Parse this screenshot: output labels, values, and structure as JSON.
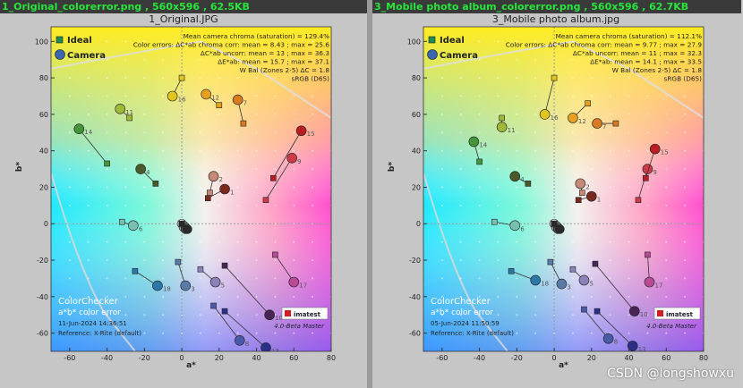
{
  "watermark": "CSDN @longshowxu",
  "windows": [
    {
      "window_title": "1_Original_colorerror.png  ,  560x596  ,  62.5KB",
      "figure_title": "1_Original.JPG",
      "legend": {
        "ideal": "Ideal",
        "camera": "Camera"
      },
      "stats": [
        "Mean camera chroma (saturation) = 129.4%",
        "Color errors: ΔC*ab chroma corr:  mean = 8.43 ;  max = 25.6",
        "ΔC*ab uncorr:  mean = 13 ;  max = 36.3",
        "ΔE*ab:  mean = 15.7 ;  max = 37.1",
        "W Bal (Zones 2-5) ΔC = 1.8",
        "sRGB (D65)"
      ],
      "footer": {
        "title": "ColorChecker",
        "subtitle": "a*b* color error",
        "date": "11-Jun-2024 14:36:51",
        "reference": "Reference: X-Rite (default)",
        "brand": "imatest",
        "version": "4.0-Beta  Master"
      }
    },
    {
      "window_title": "3_Mobile photo album_colorerror.png  ,  560x596  ,  62.7KB",
      "figure_title": "3_Mobile photo album.jpg",
      "legend": {
        "ideal": "Ideal",
        "camera": "Camera"
      },
      "stats": [
        "Mean camera chroma (saturation) = 112.1%",
        "Color errors: ΔC*ab chroma corr:  mean = 9.77 ;  max = 27.9",
        "ΔC*ab uncorr:  mean = 11 ;  max = 32.3",
        "ΔE*ab:  mean = 14.1 ;  max = 33.5",
        "W Bal (Zones 2-5) ΔC = 1.8",
        "sRGB (D65)"
      ],
      "footer": {
        "title": "ColorChecker",
        "subtitle": "a*b* color error",
        "date": "05-Jun-2024 11:50:59",
        "reference": "Reference: X-Rite (default)",
        "brand": "imatest",
        "version": "4.0-Beta  Master"
      }
    }
  ],
  "chart_data": [
    {
      "type": "scatter",
      "title": "1_Original.JPG",
      "xlabel": "a*",
      "ylabel": "b*",
      "xlim": [
        -70,
        80
      ],
      "ylim": [
        -70,
        108
      ],
      "xticks": [
        -60,
        -40,
        -20,
        0,
        20,
        40,
        60,
        80
      ],
      "yticks": [
        -60,
        -40,
        -20,
        0,
        20,
        40,
        60,
        80,
        100
      ],
      "patches": [
        {
          "id": "1",
          "color": "#7a2a1c",
          "ideal": [
            14,
            14
          ],
          "camera": [
            23,
            19
          ]
        },
        {
          "id": "2",
          "color": "#c48a78",
          "ideal": [
            15,
            17
          ],
          "camera": [
            17,
            26
          ]
        },
        {
          "id": "3",
          "color": "#5a7aa8",
          "ideal": [
            -2,
            -21
          ],
          "camera": [
            2,
            -34
          ]
        },
        {
          "id": "4",
          "color": "#4a5a2a",
          "ideal": [
            -14,
            22
          ],
          "camera": [
            -22,
            30
          ]
        },
        {
          "id": "5",
          "color": "#8a82b8",
          "ideal": [
            10,
            -25
          ],
          "camera": [
            18,
            -32
          ]
        },
        {
          "id": "6",
          "color": "#7ac0b0",
          "ideal": [
            -32,
            1
          ],
          "camera": [
            -26,
            -1
          ]
        },
        {
          "id": "7",
          "color": "#d87a22",
          "ideal": [
            33,
            55
          ],
          "camera": [
            30,
            68
          ]
        },
        {
          "id": "8",
          "color": "#4a5aa8",
          "ideal": [
            17,
            -45
          ],
          "camera": [
            31,
            -64
          ]
        },
        {
          "id": "9",
          "color": "#cc3a48",
          "ideal": [
            45,
            13
          ],
          "camera": [
            59,
            36
          ]
        },
        {
          "id": "10",
          "color": "#4a2456",
          "ideal": [
            23,
            -23
          ],
          "camera": [
            47,
            -50
          ]
        },
        {
          "id": "11",
          "color": "#a0b838",
          "ideal": [
            -28,
            58
          ],
          "camera": [
            -33,
            63
          ]
        },
        {
          "id": "12",
          "color": "#e8a020",
          "ideal": [
            20,
            65
          ],
          "camera": [
            13,
            71
          ]
        },
        {
          "id": "13",
          "color": "#2a3088",
          "ideal": [
            23,
            -48
          ],
          "camera": [
            45,
            -68
          ]
        },
        {
          "id": "14",
          "color": "#44943a",
          "ideal": [
            -40,
            33
          ],
          "camera": [
            -55,
            52
          ]
        },
        {
          "id": "15",
          "color": "#b81e24",
          "ideal": [
            49,
            25
          ],
          "camera": [
            64,
            51
          ]
        },
        {
          "id": "16",
          "color": "#e0c420",
          "ideal": [
            0,
            80
          ],
          "camera": [
            -5,
            70
          ]
        },
        {
          "id": "17",
          "color": "#b84a98",
          "ideal": [
            50,
            -17
          ],
          "camera": [
            60,
            -32
          ]
        },
        {
          "id": "18",
          "color": "#2a78a8",
          "ideal": [
            -25,
            -26
          ],
          "camera": [
            -13,
            -34
          ]
        },
        {
          "id": "19",
          "color": "#f2f2f2",
          "ideal": [
            0,
            0
          ],
          "camera": [
            0,
            0
          ]
        },
        {
          "id": "20",
          "color": "#cfcfcf",
          "ideal": [
            0,
            0
          ],
          "camera": [
            1,
            -1
          ]
        },
        {
          "id": "21",
          "color": "#a0a0a0",
          "ideal": [
            0,
            0
          ],
          "camera": [
            1,
            -2
          ]
        },
        {
          "id": "22",
          "color": "#787878",
          "ideal": [
            0,
            0
          ],
          "camera": [
            2,
            -2
          ]
        },
        {
          "id": "23",
          "color": "#505050",
          "ideal": [
            0,
            0
          ],
          "camera": [
            2,
            -3
          ]
        },
        {
          "id": "24",
          "color": "#2a2a2a",
          "ideal": [
            0,
            0
          ],
          "camera": [
            3,
            -3
          ]
        }
      ]
    },
    {
      "type": "scatter",
      "title": "3_Mobile photo album.jpg",
      "xlabel": "a*",
      "ylabel": "b*",
      "xlim": [
        -70,
        80
      ],
      "ylim": [
        -70,
        108
      ],
      "xticks": [
        -60,
        -40,
        -20,
        0,
        20,
        40,
        60,
        80
      ],
      "yticks": [
        -60,
        -40,
        -20,
        0,
        20,
        40,
        60,
        80,
        100
      ],
      "patches": [
        {
          "id": "1",
          "color": "#7a2a1c",
          "ideal": [
            13,
            13
          ],
          "camera": [
            20,
            15
          ]
        },
        {
          "id": "2",
          "color": "#c48a78",
          "ideal": [
            15,
            17
          ],
          "camera": [
            14,
            22
          ]
        },
        {
          "id": "3",
          "color": "#5a7aa8",
          "ideal": [
            -2,
            -21
          ],
          "camera": [
            4,
            -33
          ]
        },
        {
          "id": "4",
          "color": "#4a5a2a",
          "ideal": [
            -14,
            22
          ],
          "camera": [
            -21,
            26
          ]
        },
        {
          "id": "5",
          "color": "#8a82b8",
          "ideal": [
            10,
            -25
          ],
          "camera": [
            16,
            -31
          ]
        },
        {
          "id": "6",
          "color": "#7ac0b0",
          "ideal": [
            -32,
            1
          ],
          "camera": [
            -21,
            -1
          ]
        },
        {
          "id": "7",
          "color": "#d87a22",
          "ideal": [
            33,
            55
          ],
          "camera": [
            23,
            55
          ]
        },
        {
          "id": "8",
          "color": "#4a5aa8",
          "ideal": [
            16,
            -47
          ],
          "camera": [
            29,
            -63
          ]
        },
        {
          "id": "9",
          "color": "#cc3a48",
          "ideal": [
            45,
            13
          ],
          "camera": [
            50,
            30
          ]
        },
        {
          "id": "10",
          "color": "#4a2456",
          "ideal": [
            22,
            -22
          ],
          "camera": [
            43,
            -48
          ]
        },
        {
          "id": "11",
          "color": "#a0b838",
          "ideal": [
            -28,
            58
          ],
          "camera": [
            -28,
            53
          ]
        },
        {
          "id": "12",
          "color": "#e8a020",
          "ideal": [
            18,
            66
          ],
          "camera": [
            10,
            58
          ]
        },
        {
          "id": "13",
          "color": "#2a3088",
          "ideal": [
            23,
            -48
          ],
          "camera": [
            42,
            -67
          ]
        },
        {
          "id": "14",
          "color": "#44943a",
          "ideal": [
            -40,
            34
          ],
          "camera": [
            -43,
            45
          ]
        },
        {
          "id": "15",
          "color": "#b81e24",
          "ideal": [
            49,
            25
          ],
          "camera": [
            54,
            41
          ]
        },
        {
          "id": "16",
          "color": "#e0c420",
          "ideal": [
            0,
            80
          ],
          "camera": [
            -5,
            60
          ]
        },
        {
          "id": "17",
          "color": "#b84a98",
          "ideal": [
            50,
            -17
          ],
          "camera": [
            51,
            -32
          ]
        },
        {
          "id": "18",
          "color": "#2a78a8",
          "ideal": [
            -23,
            -26
          ],
          "camera": [
            -10,
            -31
          ]
        },
        {
          "id": "19",
          "color": "#f2f2f2",
          "ideal": [
            0,
            0
          ],
          "camera": [
            0,
            0
          ]
        },
        {
          "id": "20",
          "color": "#cfcfcf",
          "ideal": [
            0,
            0
          ],
          "camera": [
            1,
            -1
          ]
        },
        {
          "id": "21",
          "color": "#a0a0a0",
          "ideal": [
            0,
            0
          ],
          "camera": [
            1,
            -2
          ]
        },
        {
          "id": "22",
          "color": "#787878",
          "ideal": [
            0,
            0
          ],
          "camera": [
            2,
            -2
          ]
        },
        {
          "id": "23",
          "color": "#505050",
          "ideal": [
            0,
            0
          ],
          "camera": [
            2,
            -3
          ]
        },
        {
          "id": "24",
          "color": "#2a2a2a",
          "ideal": [
            0,
            0
          ],
          "camera": [
            3,
            -3
          ]
        }
      ]
    }
  ]
}
